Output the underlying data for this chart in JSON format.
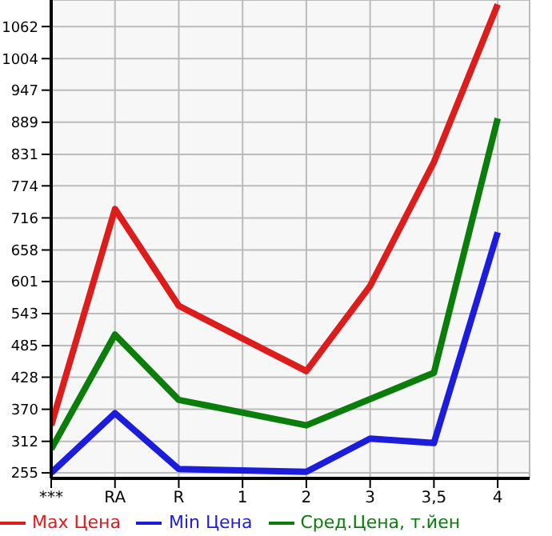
{
  "chart_data": {
    "type": "line",
    "categories": [
      "***",
      "RA",
      "R",
      "1",
      "2",
      "3",
      "3,5",
      "4"
    ],
    "series": [
      {
        "name": "Max Цена",
        "color": "#dd1c1c",
        "values": [
          341,
          732,
          557,
          null,
          439,
          593,
          817,
          1102
        ]
      },
      {
        "name": "Min Цена",
        "color": "#1c1cdd",
        "values": [
          255,
          363,
          262,
          null,
          257,
          317,
          309,
          690
        ]
      },
      {
        "name": "Сред.Цена, т.йен",
        "color": "#0a7d0a",
        "values": [
          298,
          505,
          387,
          null,
          341,
          null,
          436,
          896
        ]
      }
    ],
    "ylim": [
      245,
      1110
    ],
    "yticks": [
      255,
      312,
      370,
      428,
      485,
      543,
      601,
      658,
      716,
      774,
      831,
      889,
      947,
      1004,
      1062
    ],
    "grid": true,
    "legend": "bottom",
    "marker": "none",
    "line_style": "solid"
  }
}
